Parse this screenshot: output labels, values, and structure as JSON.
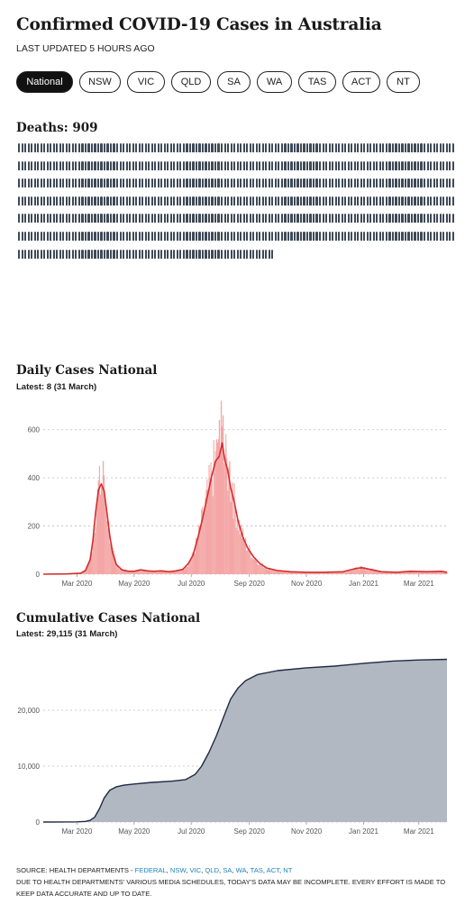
{
  "header": {
    "title": "Confirmed COVID-19 Cases in Australia",
    "updated": "LAST UPDATED 5 HOURS AGO"
  },
  "tabs": [
    {
      "label": "National",
      "active": true
    },
    {
      "label": "NSW",
      "active": false
    },
    {
      "label": "VIC",
      "active": false
    },
    {
      "label": "QLD",
      "active": false
    },
    {
      "label": "SA",
      "active": false
    },
    {
      "label": "WA",
      "active": false
    },
    {
      "label": "TAS",
      "active": false
    },
    {
      "label": "ACT",
      "active": false
    },
    {
      "label": "NT",
      "active": false
    }
  ],
  "deaths": {
    "title": "Deaths: 909",
    "count": 909,
    "icon": "person-icon",
    "color": "#3f4a57"
  },
  "daily": {
    "title": "Daily Cases National",
    "latest": "Latest: 8 (31 March)"
  },
  "cumulative": {
    "title": "Cumulative Cases National",
    "latest": "Latest: 29,115 (31 March)"
  },
  "footer": {
    "source_prefix": "SOURCE: HEALTH DEPARTMENTS - ",
    "links": [
      "FEDERAL",
      "NSW",
      "VIC",
      "QLD",
      "SA",
      "WA",
      "TAS",
      "ACT",
      "NT"
    ],
    "note": "DUE TO HEALTH DEPARTMENTS' VARIOUS MEDIA SCHEDULES, TODAY'S DATA MAY BE INCOMPLETE. EVERY EFFORT IS MADE TO KEEP DATA ACCURATE AND UP TO DATE.",
    "link_color": "#1a82c4"
  },
  "chart_data": [
    {
      "type": "area",
      "title": "Daily Cases National",
      "subtitle": "Latest: 8 (31 March)",
      "x_ticks": [
        "Mar 2020",
        "May 2020",
        "Jul 2020",
        "Sep 2020",
        "Nov 2020",
        "Jan 2021",
        "Mar 2021"
      ],
      "x_tick_dates": [
        "2020-03-01",
        "2020-05-01",
        "2020-07-01",
        "2020-09-01",
        "2020-11-01",
        "2021-01-01",
        "2021-03-01"
      ],
      "x_range": [
        "2020-01-25",
        "2021-03-31"
      ],
      "ylim": [
        0,
        700
      ],
      "y_ticks": [
        0,
        200,
        400,
        600
      ],
      "grid": true,
      "bar_color": "#f4a6a6",
      "line_color": "#d42c2c",
      "series": [
        {
          "values": [
            [
              "2020-01-25",
              0
            ],
            [
              "2020-02-20",
              1
            ],
            [
              "2020-03-05",
              4
            ],
            [
              "2020-03-10",
              15
            ],
            [
              "2020-03-15",
              60
            ],
            [
              "2020-03-18",
              140
            ],
            [
              "2020-03-21",
              260
            ],
            [
              "2020-03-24",
              350
            ],
            [
              "2020-03-27",
              375
            ],
            [
              "2020-03-30",
              345
            ],
            [
              "2020-04-02",
              255
            ],
            [
              "2020-04-05",
              160
            ],
            [
              "2020-04-08",
              90
            ],
            [
              "2020-04-12",
              40
            ],
            [
              "2020-04-18",
              18
            ],
            [
              "2020-04-25",
              12
            ],
            [
              "2020-05-01",
              12
            ],
            [
              "2020-05-08",
              18
            ],
            [
              "2020-05-15",
              14
            ],
            [
              "2020-05-22",
              12
            ],
            [
              "2020-05-30",
              14
            ],
            [
              "2020-06-07",
              10
            ],
            [
              "2020-06-15",
              14
            ],
            [
              "2020-06-22",
              20
            ],
            [
              "2020-06-28",
              45
            ],
            [
              "2020-07-03",
              80
            ],
            [
              "2020-07-08",
              150
            ],
            [
              "2020-07-13",
              230
            ],
            [
              "2020-07-18",
              320
            ],
            [
              "2020-07-23",
              410
            ],
            [
              "2020-07-27",
              470
            ],
            [
              "2020-07-31",
              490
            ],
            [
              "2020-08-03",
              545
            ],
            [
              "2020-08-06",
              470
            ],
            [
              "2020-08-09",
              430
            ],
            [
              "2020-08-12",
              360
            ],
            [
              "2020-08-16",
              300
            ],
            [
              "2020-08-20",
              220
            ],
            [
              "2020-08-25",
              155
            ],
            [
              "2020-08-30",
              110
            ],
            [
              "2020-09-05",
              75
            ],
            [
              "2020-09-12",
              45
            ],
            [
              "2020-09-20",
              25
            ],
            [
              "2020-10-01",
              15
            ],
            [
              "2020-10-15",
              10
            ],
            [
              "2020-11-01",
              8
            ],
            [
              "2020-11-20",
              8
            ],
            [
              "2020-12-10",
              10
            ],
            [
              "2020-12-22",
              22
            ],
            [
              "2020-12-30",
              27
            ],
            [
              "2021-01-08",
              20
            ],
            [
              "2021-01-20",
              10
            ],
            [
              "2021-02-05",
              8
            ],
            [
              "2021-02-20",
              12
            ],
            [
              "2021-03-10",
              10
            ],
            [
              "2021-03-25",
              12
            ],
            [
              "2021-03-31",
              8
            ]
          ]
        }
      ],
      "spikes": [
        [
          "2020-03-29",
          470
        ],
        [
          "2020-03-24",
          390
        ],
        [
          "2020-07-22",
          420
        ],
        [
          "2020-07-28",
          560
        ],
        [
          "2020-07-31",
          640
        ],
        [
          "2020-08-02",
          720
        ],
        [
          "2020-08-04",
          660
        ],
        [
          "2020-08-07",
          520
        ],
        [
          "2020-08-11",
          470
        ],
        [
          "2020-08-14",
          380
        ]
      ]
    },
    {
      "type": "area",
      "title": "Cumulative Cases National",
      "subtitle": "Latest: 29,115 (31 March)",
      "x_ticks": [
        "Mar 2020",
        "May 2020",
        "Jul 2020",
        "Sep 2020",
        "Nov 2020",
        "Jan 2021",
        "Mar 2021"
      ],
      "x_tick_dates": [
        "2020-03-01",
        "2020-05-01",
        "2020-07-01",
        "2020-09-01",
        "2020-11-01",
        "2021-01-01",
        "2021-03-01"
      ],
      "x_range": [
        "2020-01-25",
        "2021-03-31"
      ],
      "ylim": [
        0,
        30000
      ],
      "y_ticks": [
        0,
        10000,
        20000
      ],
      "y_tick_labels": [
        "0",
        "10,000",
        "20,000"
      ],
      "grid": true,
      "fill_color": "#b1b8c1",
      "line_color": "#1f2a44",
      "series": [
        {
          "values": [
            [
              "2020-01-25",
              0
            ],
            [
              "2020-03-01",
              30
            ],
            [
              "2020-03-10",
              110
            ],
            [
              "2020-03-15",
              300
            ],
            [
              "2020-03-20",
              900
            ],
            [
              "2020-03-25",
              2400
            ],
            [
              "2020-03-30",
              4300
            ],
            [
              "2020-04-05",
              5700
            ],
            [
              "2020-04-12",
              6300
            ],
            [
              "2020-04-20",
              6600
            ],
            [
              "2020-05-01",
              6800
            ],
            [
              "2020-05-20",
              7100
            ],
            [
              "2020-06-10",
              7300
            ],
            [
              "2020-06-25",
              7600
            ],
            [
              "2020-07-05",
              8500
            ],
            [
              "2020-07-12",
              10000
            ],
            [
              "2020-07-20",
              12500
            ],
            [
              "2020-07-28",
              15500
            ],
            [
              "2020-08-05",
              19000
            ],
            [
              "2020-08-12",
              22000
            ],
            [
              "2020-08-20",
              24000
            ],
            [
              "2020-08-28",
              25300
            ],
            [
              "2020-09-10",
              26400
            ],
            [
              "2020-10-01",
              27100
            ],
            [
              "2020-11-01",
              27600
            ],
            [
              "2020-12-01",
              27900
            ],
            [
              "2021-01-01",
              28400
            ],
            [
              "2021-02-01",
              28800
            ],
            [
              "2021-03-01",
              29000
            ],
            [
              "2021-03-31",
              29115
            ]
          ]
        }
      ]
    }
  ]
}
